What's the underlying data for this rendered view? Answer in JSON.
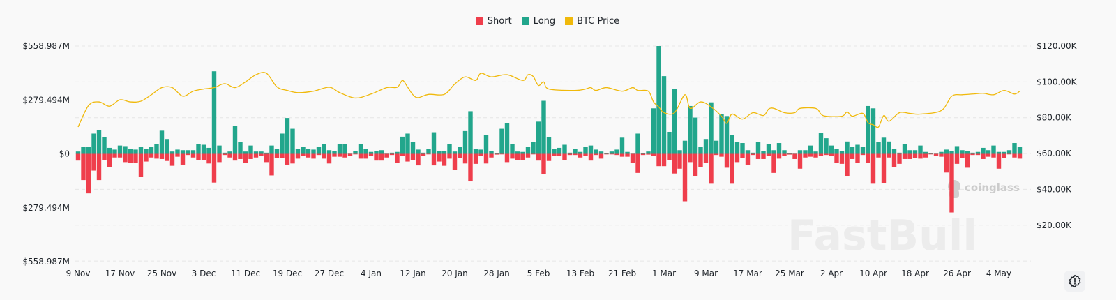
{
  "legend": {
    "short": "Short",
    "long": "Long",
    "price": "BTC Price"
  },
  "colors": {
    "short": "#EF3E4C",
    "long": "#22A68C",
    "price": "#F0B90B",
    "grid": "#e6e6e6",
    "text": "#1e2329"
  },
  "watermarks": {
    "coinglass": "coinglass",
    "fastbull": "FastBull"
  },
  "settings_icon": "alert-badge-icon",
  "chart_data": {
    "type": "bar",
    "title": "",
    "left_axis": {
      "ticks": [
        "$558.987M",
        "$279.494M",
        "$0",
        "$279.494M",
        "$558.987M"
      ],
      "range_musd": [
        -558.987,
        558.987
      ]
    },
    "right_axis": {
      "ticks": [
        "$120.00K",
        "$100.00K",
        "$80.00K",
        "$60.00K",
        "$40.00K",
        "$20.00K"
      ],
      "range_kusd": [
        0,
        120
      ]
    },
    "x_tick_labels": [
      "9 Nov",
      "17 Nov",
      "25 Nov",
      "3 Dec",
      "11 Dec",
      "19 Dec",
      "27 Dec",
      "4 Jan",
      "12 Jan",
      "20 Jan",
      "28 Jan",
      "5 Feb",
      "13 Feb",
      "21 Feb",
      "1 Mar",
      "9 Mar",
      "17 Mar",
      "25 Mar",
      "2 Apr",
      "10 Apr",
      "18 Apr",
      "26 Apr",
      "4 May"
    ],
    "grid": true,
    "legend_position": "top",
    "categories": [
      "9 Nov",
      "10 Nov",
      "11 Nov",
      "12 Nov",
      "13 Nov",
      "14 Nov",
      "15 Nov",
      "16 Nov",
      "17 Nov",
      "18 Nov",
      "19 Nov",
      "20 Nov",
      "21 Nov",
      "22 Nov",
      "23 Nov",
      "24 Nov",
      "25 Nov",
      "26 Nov",
      "27 Nov",
      "28 Nov",
      "29 Nov",
      "30 Nov",
      "1 Dec",
      "2 Dec",
      "3 Dec",
      "4 Dec",
      "5 Dec",
      "6 Dec",
      "7 Dec",
      "8 Dec",
      "9 Dec",
      "10 Dec",
      "11 Dec",
      "12 Dec",
      "13 Dec",
      "14 Dec",
      "15 Dec",
      "16 Dec",
      "17 Dec",
      "18 Dec",
      "19 Dec",
      "20 Dec",
      "21 Dec",
      "22 Dec",
      "23 Dec",
      "24 Dec",
      "25 Dec",
      "26 Dec",
      "27 Dec",
      "28 Dec",
      "29 Dec",
      "30 Dec",
      "31 Dec",
      "1 Jan",
      "2 Jan",
      "3 Jan",
      "4 Jan",
      "5 Jan",
      "6 Jan",
      "7 Jan",
      "8 Jan",
      "9 Jan",
      "10 Jan",
      "11 Jan",
      "12 Jan",
      "13 Jan",
      "14 Jan",
      "15 Jan",
      "16 Jan",
      "17 Jan",
      "18 Jan",
      "19 Jan",
      "20 Jan",
      "21 Jan",
      "22 Jan",
      "23 Jan",
      "24 Jan",
      "25 Jan",
      "26 Jan",
      "27 Jan",
      "28 Jan",
      "29 Jan",
      "30 Jan",
      "31 Jan",
      "1 Feb",
      "2 Feb",
      "3 Feb",
      "4 Feb",
      "5 Feb",
      "6 Feb",
      "7 Feb",
      "8 Feb",
      "9 Feb",
      "10 Feb",
      "11 Feb",
      "12 Feb",
      "13 Feb",
      "14 Feb",
      "15 Feb",
      "16 Feb",
      "17 Feb",
      "18 Feb",
      "19 Feb",
      "20 Feb",
      "21 Feb",
      "22 Feb",
      "23 Feb",
      "24 Feb",
      "25 Feb",
      "26 Feb",
      "27 Feb",
      "28 Feb",
      "1 Mar",
      "2 Mar",
      "3 Mar",
      "4 Mar",
      "5 Mar",
      "6 Mar",
      "7 Mar",
      "8 Mar",
      "9 Mar",
      "10 Mar",
      "11 Mar",
      "12 Mar",
      "13 Mar",
      "14 Mar",
      "15 Mar",
      "16 Mar",
      "17 Mar",
      "18 Mar",
      "19 Mar",
      "20 Mar",
      "21 Mar",
      "22 Mar",
      "23 Mar",
      "24 Mar",
      "25 Mar",
      "26 Mar",
      "27 Mar",
      "28 Mar",
      "29 Mar",
      "30 Mar",
      "31 Mar",
      "1 Apr",
      "2 Apr",
      "3 Apr",
      "4 Apr",
      "5 Apr",
      "6 Apr",
      "7 Apr",
      "8 Apr",
      "9 Apr",
      "10 Apr",
      "11 Apr",
      "12 Apr",
      "13 Apr",
      "14 Apr",
      "15 Apr",
      "16 Apr",
      "17 Apr",
      "18 Apr",
      "19 Apr",
      "20 Apr",
      "21 Apr",
      "22 Apr",
      "23 Apr",
      "24 Apr",
      "25 Apr",
      "26 Apr",
      "27 Apr",
      "28 Apr",
      "29 Apr",
      "30 Apr",
      "1 May",
      "2 May",
      "3 May",
      "4 May",
      "5 May",
      "6 May",
      "7 May",
      "8 May"
    ],
    "series": [
      {
        "name": "Long",
        "unit": "M USD",
        "values": [
          12,
          35,
          35,
          105,
          122,
          87,
          31,
          22,
          43,
          40,
          27,
          22,
          37,
          25,
          37,
          52,
          120,
          77,
          12,
          22,
          19,
          19,
          19,
          50,
          47,
          31,
          428,
          43,
          6,
          12,
          146,
          62,
          12,
          43,
          12,
          12,
          6,
          43,
          27,
          105,
          186,
          130,
          25,
          37,
          25,
          22,
          37,
          50,
          19,
          15,
          50,
          50,
          1,
          15,
          50,
          25,
          10,
          15,
          19,
          1,
          6,
          10,
          89,
          105,
          62,
          22,
          6,
          25,
          112,
          15,
          15,
          52,
          12,
          37,
          118,
          221,
          27,
          22,
          99,
          15,
          4,
          130,
          161,
          50,
          12,
          10,
          37,
          62,
          167,
          275,
          87,
          27,
          31,
          47,
          6,
          25,
          10,
          35,
          43,
          22,
          12,
          2,
          12,
          22,
          84,
          10,
          1,
          105,
          2,
          12,
          236,
          559,
          403,
          114,
          337,
          19,
          68,
          248,
          188,
          37,
          77,
          267,
          68,
          208,
          196,
          97,
          62,
          56,
          19,
          6,
          62,
          15,
          50,
          19,
          56,
          19,
          4,
          1,
          19,
          19,
          43,
          12,
          109,
          81,
          43,
          25,
          15,
          64,
          35,
          47,
          37,
          248,
          236,
          62,
          84,
          64,
          25,
          6,
          52,
          19,
          19,
          43,
          10,
          2,
          1,
          10,
          22,
          15,
          40,
          19,
          15,
          6,
          10,
          31,
          19,
          43,
          10,
          10,
          19,
          56,
          35
        ]
      },
      {
        "name": "Short",
        "unit": "M USD",
        "values": [
          35,
          136,
          205,
          87,
          136,
          31,
          68,
          19,
          19,
          43,
          47,
          47,
          118,
          40,
          19,
          25,
          27,
          37,
          62,
          15,
          56,
          6,
          19,
          31,
          31,
          50,
          149,
          43,
          6,
          19,
          35,
          27,
          47,
          27,
          19,
          10,
          43,
          112,
          22,
          22,
          56,
          50,
          25,
          12,
          19,
          25,
          6,
          25,
          50,
          15,
          15,
          19,
          10,
          1,
          25,
          25,
          12,
          35,
          35,
          19,
          6,
          47,
          12,
          40,
          31,
          60,
          12,
          1,
          60,
          40,
          62,
          25,
          84,
          22,
          50,
          143,
          52,
          10,
          50,
          19,
          4,
          1,
          43,
          25,
          31,
          31,
          19,
          1,
          35,
          105,
          37,
          12,
          12,
          31,
          6,
          6,
          19,
          10,
          35,
          6,
          25,
          2,
          1,
          6,
          15,
          15,
          47,
          99,
          6,
          4,
          12,
          64,
          64,
          31,
          102,
          77,
          246,
          43,
          114,
          68,
          47,
          155,
          6,
          15,
          72,
          155,
          43,
          22,
          56,
          6,
          27,
          27,
          12,
          99,
          25,
          12,
          4,
          27,
          77,
          19,
          15,
          19,
          10,
          6,
          12,
          47,
          52,
          114,
          27,
          47,
          6,
          47,
          155,
          19,
          151,
          19,
          68,
          52,
          27,
          27,
          22,
          25,
          19,
          2,
          10,
          15,
          97,
          304,
          52,
          22,
          72,
          6,
          6,
          27,
          15,
          19,
          77,
          22,
          2,
          19,
          25
        ]
      },
      {
        "name": "BTC Price",
        "unit": "K USD",
        "axis": "right",
        "points": [
          [
            "9 Nov",
            74.8
          ],
          [
            "11 Nov",
            86.8
          ],
          [
            "13 Nov",
            88.8
          ],
          [
            "15 Nov",
            86.4
          ],
          [
            "17 Nov",
            90
          ],
          [
            "19 Nov",
            88.8
          ],
          [
            "21 Nov",
            89.2
          ],
          [
            "23 Nov",
            92.8
          ],
          [
            "25 Nov",
            96.8
          ],
          [
            "27 Nov",
            96.8
          ],
          [
            "29 Nov",
            92
          ],
          [
            "1 Dec",
            94.8
          ],
          [
            "3 Dec",
            96
          ],
          [
            "5 Dec",
            96.8
          ],
          [
            "7 Dec",
            99
          ],
          [
            "9 Dec",
            96.8
          ],
          [
            "11 Dec",
            100
          ],
          [
            "13 Dec",
            104
          ],
          [
            "15 Dec",
            104.8
          ],
          [
            "17 Dec",
            97.2
          ],
          [
            "19 Dec",
            95.2
          ],
          [
            "21 Dec",
            94
          ],
          [
            "24 Dec",
            94.8
          ],
          [
            "27 Dec",
            97
          ],
          [
            "29 Dec",
            94
          ],
          [
            "1 Jan",
            91
          ],
          [
            "4 Jan",
            93.2
          ],
          [
            "7 Jan",
            96.8
          ],
          [
            "9 Jan",
            97
          ],
          [
            "10 Jan",
            100.8
          ],
          [
            "11 Jan",
            97
          ],
          [
            "12 Jan",
            92.8
          ],
          [
            "13 Jan",
            91.2
          ],
          [
            "15 Jan",
            93
          ],
          [
            "18 Jan",
            93
          ],
          [
            "20 Jan",
            98.8
          ],
          [
            "22 Jan",
            102.8
          ],
          [
            "24 Jan",
            100.8
          ],
          [
            "25 Jan",
            104.8
          ],
          [
            "27 Jan",
            102.8
          ],
          [
            "30 Jan",
            104
          ],
          [
            "2 Feb",
            100.8
          ],
          [
            "3 Feb",
            104
          ],
          [
            "4 Feb",
            103
          ],
          [
            "5 Feb",
            98
          ],
          [
            "6 Feb",
            100
          ],
          [
            "7 Feb",
            96
          ],
          [
            "12 Feb",
            95.2
          ],
          [
            "14 Feb",
            96
          ],
          [
            "15 Feb",
            96.8
          ],
          [
            "16 Feb",
            95.2
          ],
          [
            "18 Feb",
            96.8
          ],
          [
            "21 Feb",
            94.8
          ],
          [
            "23 Feb",
            96.8
          ],
          [
            "24 Feb",
            95.2
          ],
          [
            "26 Feb",
            94.8
          ],
          [
            "27 Feb",
            88.8
          ],
          [
            "28 Feb",
            86
          ],
          [
            "1 Mar",
            82.8
          ],
          [
            "3 Mar",
            82.8
          ],
          [
            "5 Mar",
            92.8
          ],
          [
            "6 Mar",
            85.2
          ],
          [
            "8 Mar",
            88.8
          ],
          [
            "10 Mar",
            86
          ],
          [
            "12 Mar",
            80.8
          ],
          [
            "13 Mar",
            76.8
          ],
          [
            "14 Mar",
            82
          ],
          [
            "16 Mar",
            79.2
          ],
          [
            "18 Mar",
            82.8
          ],
          [
            "20 Mar",
            81.2
          ],
          [
            "21 Mar",
            84.8
          ],
          [
            "22 Mar",
            85.2
          ],
          [
            "24 Mar",
            82.8
          ],
          [
            "26 Mar",
            82.8
          ],
          [
            "27 Mar",
            85.2
          ],
          [
            "30 Mar",
            85.2
          ],
          [
            "31 Mar",
            82
          ],
          [
            "1 Apr",
            80.8
          ],
          [
            "4 Apr",
            80.8
          ],
          [
            "5 Apr",
            83.2
          ],
          [
            "6 Apr",
            80.8
          ],
          [
            "8 Apr",
            82.4
          ],
          [
            "9 Apr",
            77.2
          ],
          [
            "10 Apr",
            76
          ],
          [
            "11 Apr",
            74.8
          ],
          [
            "12 Apr",
            81.2
          ],
          [
            "13 Apr",
            78
          ],
          [
            "15 Apr",
            82.8
          ],
          [
            "17 Apr",
            82.4
          ],
          [
            "19 Apr",
            82
          ],
          [
            "23 Apr",
            84
          ],
          [
            "25 Apr",
            92
          ],
          [
            "27 Apr",
            92.8
          ],
          [
            "29 Apr",
            93.2
          ],
          [
            "1 May",
            93.6
          ],
          [
            "3 May",
            92.8
          ],
          [
            "5 May",
            95.2
          ],
          [
            "7 May",
            93.2
          ],
          [
            "8 May",
            94.8
          ]
        ]
      }
    ]
  }
}
